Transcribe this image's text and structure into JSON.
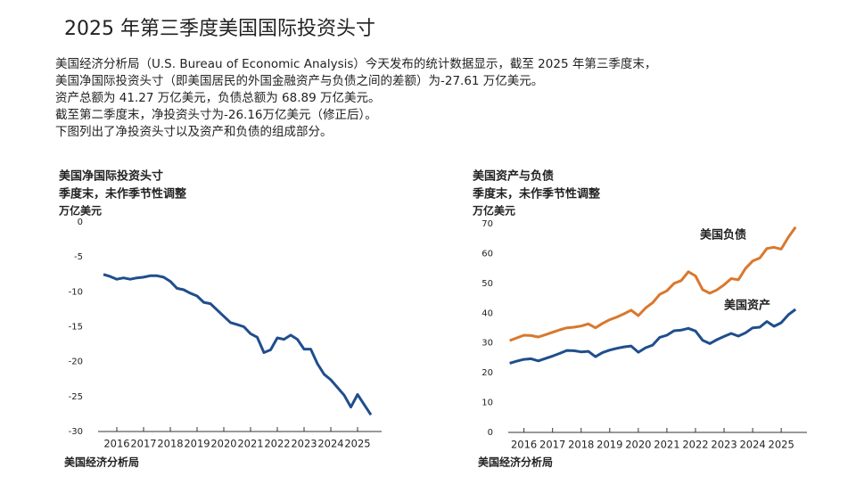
{
  "title": "2025 年第三季度美国国际投资头寸",
  "paragraph": [
    "美国经济分析局（U.S. Bureau of Economic Analysis）今天发布的统计数据显示，截至 2025 年第三季度末，",
    "美国净国际投资头寸（即美国居民的外国金融资产与负债之间的差额）为-27.61 万亿美元。",
    "资产总额为 41.27 万亿美元，负债总额为 68.89 万亿美元。",
    "截至第二季度末，净投资头寸为-26.16万亿美元（修正后）。",
    "下图列出了净投资头寸以及资产和负债的组成部分。"
  ],
  "chart_data": [
    {
      "type": "line",
      "title": "美国净国际投资头寸",
      "subtitle": "季度末，未作季节性调整",
      "y_label": "万亿美元",
      "source": "美国经济分析局",
      "x": [
        2015.5,
        2015.75,
        2016,
        2016.25,
        2016.5,
        2016.75,
        2017,
        2017.25,
        2017.5,
        2017.75,
        2018,
        2018.25,
        2018.5,
        2018.75,
        2019,
        2019.25,
        2019.5,
        2019.75,
        2020,
        2020.25,
        2020.5,
        2020.75,
        2021,
        2021.25,
        2021.5,
        2021.75,
        2022,
        2022.25,
        2022.5,
        2022.75,
        2023,
        2023.25,
        2023.5,
        2023.75,
        2024,
        2024.25,
        2024.5,
        2024.75,
        2025,
        2025.25,
        2025.5
      ],
      "values": [
        -7.5,
        -7.8,
        -8.2,
        -8.0,
        -8.2,
        -8.0,
        -7.9,
        -7.7,
        -7.7,
        -7.9,
        -8.5,
        -9.5,
        -9.7,
        -10.2,
        -10.6,
        -11.5,
        -11.7,
        -12.6,
        -13.5,
        -14.4,
        -14.7,
        -15.0,
        -16.0,
        -16.5,
        -18.7,
        -18.3,
        -16.6,
        -16.8,
        -16.2,
        -16.8,
        -18.2,
        -18.2,
        -20.3,
        -21.8,
        -22.6,
        -23.7,
        -24.8,
        -26.5,
        -24.7,
        -26.16,
        -27.61
      ],
      "color": "#1f4e8c",
      "xlim": [
        2015.3,
        2025.9
      ],
      "xticks": [
        2016,
        2017,
        2018,
        2019,
        2020,
        2021,
        2022,
        2023,
        2024,
        2025
      ],
      "ylim": [
        -30,
        0
      ],
      "yticks": [
        0,
        -5,
        -10,
        -15,
        -20,
        -25,
        -30
      ]
    },
    {
      "type": "line",
      "title": "美国资产与负债",
      "subtitle": "季度末，未作季节性调整",
      "y_label": "万亿美元",
      "source": "美国经济分析局",
      "x": [
        2015.5,
        2015.75,
        2016,
        2016.25,
        2016.5,
        2016.75,
        2017,
        2017.25,
        2017.5,
        2017.75,
        2018,
        2018.25,
        2018.5,
        2018.75,
        2019,
        2019.25,
        2019.5,
        2019.75,
        2020,
        2020.25,
        2020.5,
        2020.75,
        2021,
        2021.25,
        2021.5,
        2021.75,
        2022,
        2022.25,
        2022.5,
        2022.75,
        2023,
        2023.25,
        2023.5,
        2023.75,
        2024,
        2024.25,
        2024.5,
        2024.75,
        2025,
        2025.25,
        2025.5
      ],
      "series": [
        {
          "name": "美国负债",
          "color": "#d9782d",
          "values": [
            30.8,
            31.7,
            32.6,
            32.5,
            32.0,
            32.8,
            33.6,
            34.4,
            35.1,
            35.3,
            35.7,
            36.4,
            35.1,
            36.6,
            37.8,
            38.7,
            39.8,
            41.0,
            39.2,
            41.7,
            43.5,
            46.3,
            47.5,
            50.0,
            50.9,
            53.9,
            52.5,
            47.9,
            46.7,
            47.8,
            49.5,
            51.6,
            51.2,
            55.0,
            57.5,
            58.5,
            61.7,
            62.1,
            61.5,
            65.5,
            68.89
          ]
        },
        {
          "name": "美国资产",
          "color": "#1f4e8c",
          "values": [
            23.2,
            23.9,
            24.5,
            24.7,
            24.0,
            24.8,
            25.6,
            26.5,
            27.5,
            27.4,
            27.0,
            27.2,
            25.4,
            26.8,
            27.6,
            28.2,
            28.7,
            29.0,
            26.9,
            28.4,
            29.3,
            31.9,
            32.6,
            34.1,
            34.3,
            34.9,
            34.0,
            30.9,
            29.8,
            31.1,
            32.2,
            33.2,
            32.3,
            33.4,
            35.1,
            35.3,
            37.2,
            35.6,
            36.8,
            39.5,
            41.27
          ]
        }
      ],
      "xlim": [
        2015.45,
        2025.9
      ],
      "xticks": [
        2016,
        2017,
        2018,
        2019,
        2020,
        2021,
        2022,
        2023,
        2024,
        2025
      ],
      "ylim": [
        0,
        70
      ],
      "yticks": [
        0,
        10,
        20,
        30,
        40,
        50,
        60,
        70
      ]
    }
  ]
}
